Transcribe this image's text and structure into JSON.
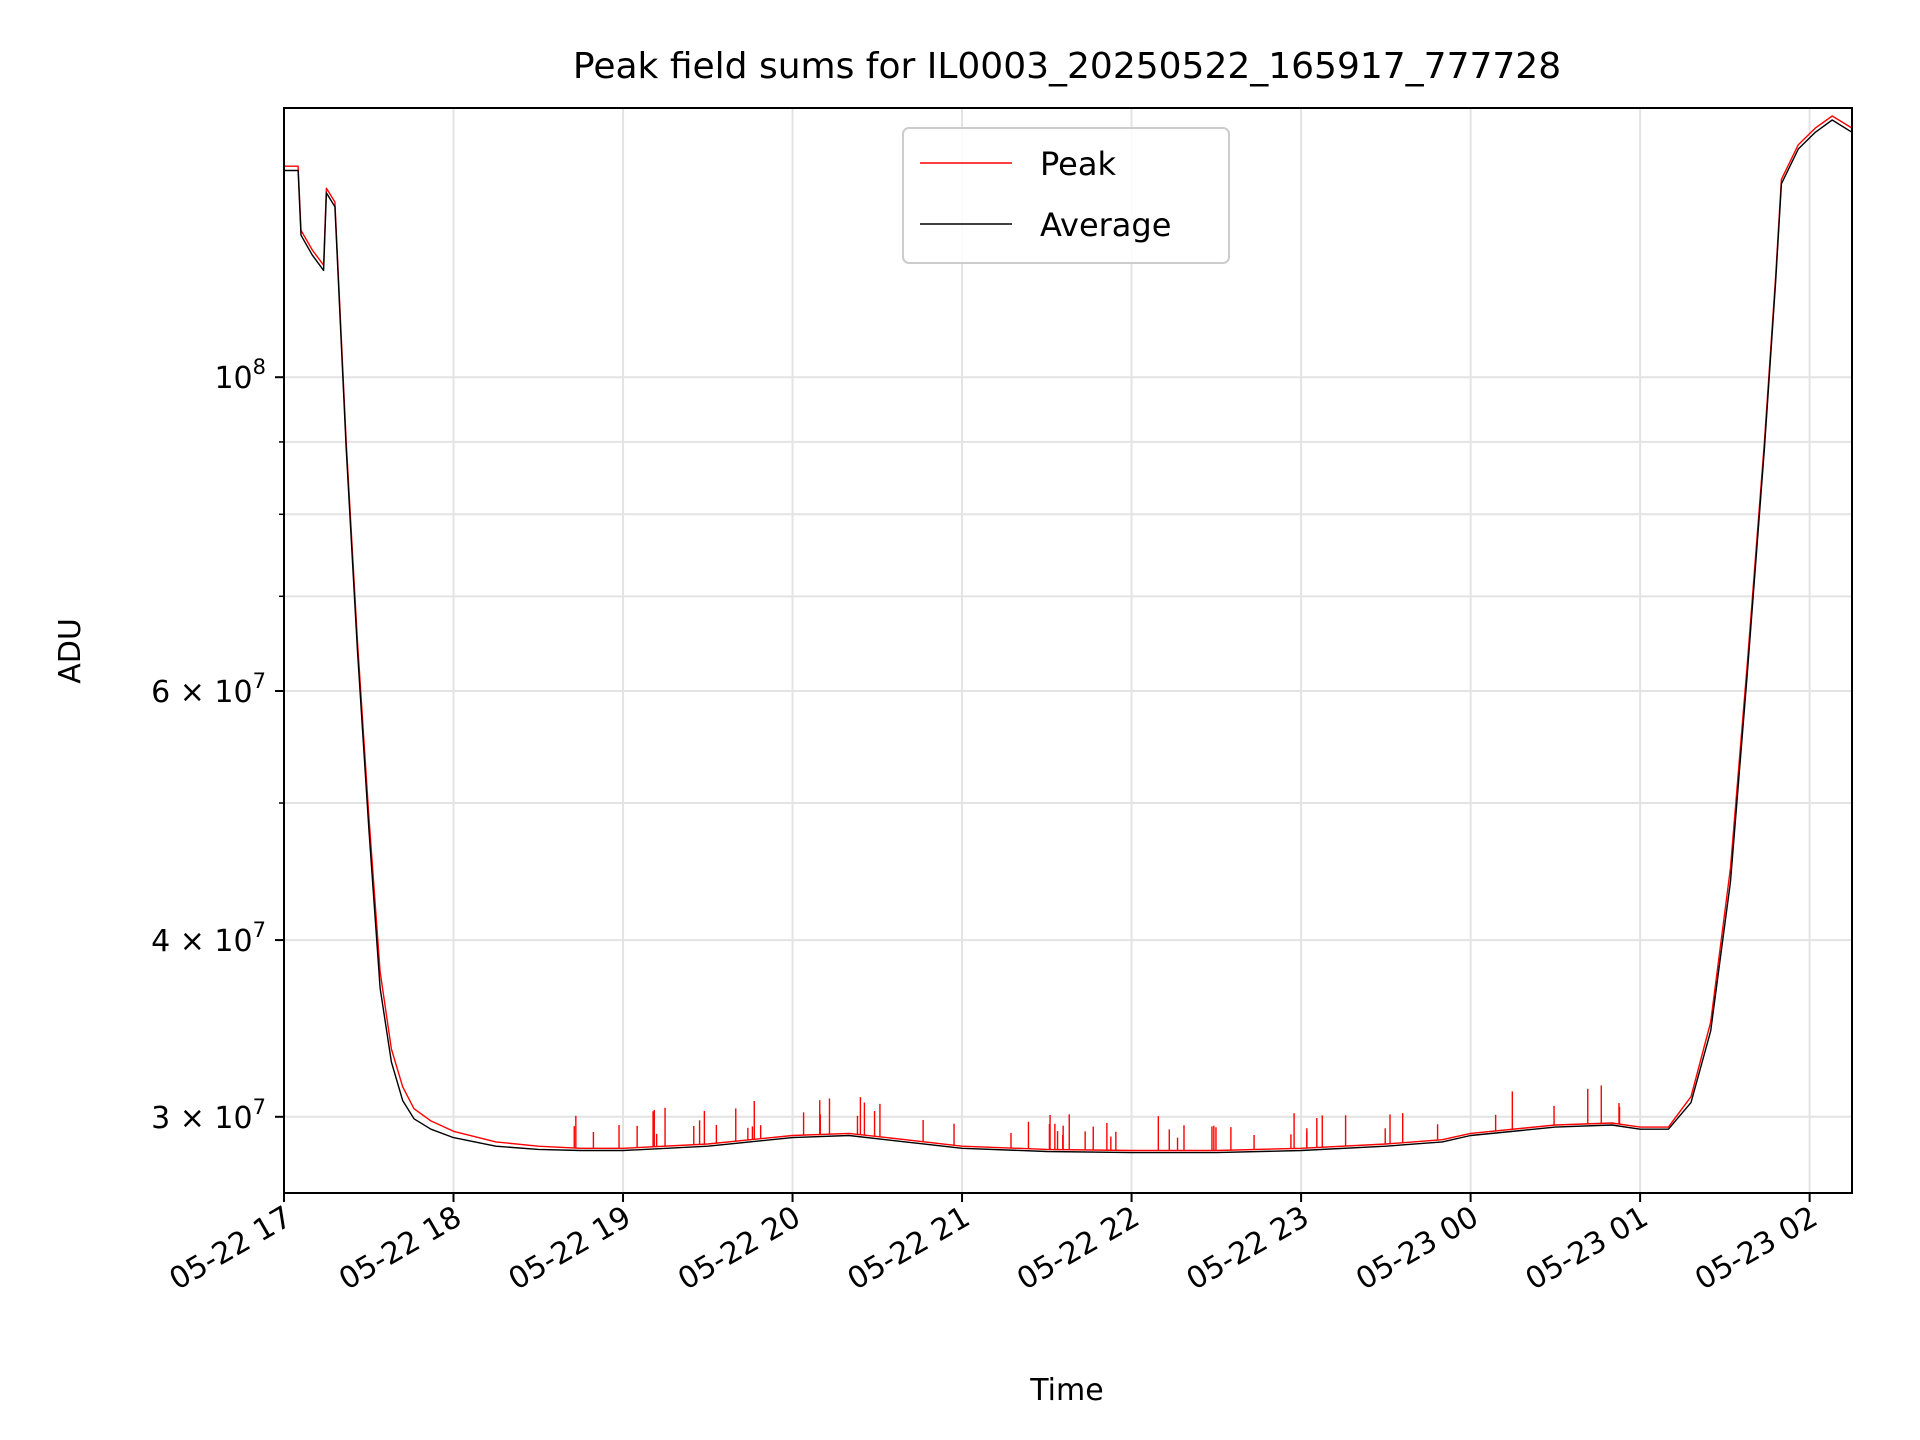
{
  "chart_data": {
    "type": "line",
    "title": "Peak field sums for IL0003_20250522_165917_777728",
    "xlabel": "Time",
    "ylabel": "ADU",
    "yscale": "log",
    "ylim": [
      26500000,
      155000000
    ],
    "xlim": [
      "2025-05-22 17:00",
      "2025-05-23 02:15"
    ],
    "grid": true,
    "legend_position": "upper center",
    "x_tick_labels": [
      "05-22 17",
      "05-22 18",
      "05-22 19",
      "05-22 20",
      "05-22 21",
      "05-22 22",
      "05-22 23",
      "05-23 00",
      "05-23 01",
      "05-23 02"
    ],
    "y_tick_labels": [
      {
        "value": 100000000,
        "base": "10",
        "exp": "8"
      },
      {
        "value": 60000000,
        "base": "6 × 10",
        "exp": "7"
      },
      {
        "value": 40000000,
        "base": "4 × 10",
        "exp": "7"
      },
      {
        "value": 30000000,
        "base": "3 × 10",
        "exp": "7"
      }
    ],
    "minor_y_ticks": [
      70000000,
      80000000,
      90000000,
      50000000
    ],
    "series": [
      {
        "name": "Peak",
        "color": "#ff0000",
        "x": [
          "2025-05-22 17:00",
          "2025-05-22 17:05",
          "2025-05-22 17:06",
          "2025-05-22 17:10",
          "2025-05-22 17:14",
          "2025-05-22 17:15",
          "2025-05-22 17:18",
          "2025-05-22 17:22",
          "2025-05-22 17:26",
          "2025-05-22 17:30",
          "2025-05-22 17:34",
          "2025-05-22 17:38",
          "2025-05-22 17:42",
          "2025-05-22 17:46",
          "2025-05-22 17:52",
          "2025-05-22 18:00",
          "2025-05-22 18:15",
          "2025-05-22 18:30",
          "2025-05-22 18:45",
          "2025-05-22 19:00",
          "2025-05-22 19:30",
          "2025-05-22 20:00",
          "2025-05-22 20:20",
          "2025-05-22 20:40",
          "2025-05-22 21:00",
          "2025-05-22 21:30",
          "2025-05-22 22:00",
          "2025-05-22 22:30",
          "2025-05-22 23:00",
          "2025-05-22 23:30",
          "2025-05-22 23:50",
          "2025-05-23 00:00",
          "2025-05-23 00:30",
          "2025-05-23 00:50",
          "2025-05-23 01:00",
          "2025-05-23 01:10",
          "2025-05-23 01:18",
          "2025-05-23 01:25",
          "2025-05-23 01:32",
          "2025-05-23 01:38",
          "2025-05-23 01:44",
          "2025-05-23 01:48",
          "2025-05-23 01:50",
          "2025-05-23 01:56",
          "2025-05-23 02:02",
          "2025-05-23 02:08",
          "2025-05-23 02:15"
        ],
        "values": [
          141000000,
          141000000,
          127000000,
          123000000,
          120000000,
          136000000,
          133000000,
          90000000,
          65000000,
          49000000,
          38000000,
          33500000,
          31500000,
          30400000,
          29800000,
          29300000,
          28800000,
          28600000,
          28500000,
          28500000,
          28700000,
          29100000,
          29200000,
          28900000,
          28600000,
          28450000,
          28400000,
          28400000,
          28500000,
          28700000,
          28900000,
          29200000,
          29600000,
          29700000,
          29500000,
          29500000,
          31000000,
          35000000,
          45000000,
          63000000,
          90000000,
          118000000,
          138000000,
          146000000,
          150000000,
          153000000,
          150000000
        ]
      },
      {
        "name": "Average",
        "color": "#000000",
        "x": [
          "2025-05-22 17:00",
          "2025-05-22 17:05",
          "2025-05-22 17:06",
          "2025-05-22 17:10",
          "2025-05-22 17:14",
          "2025-05-22 17:15",
          "2025-05-22 17:18",
          "2025-05-22 17:22",
          "2025-05-22 17:26",
          "2025-05-22 17:30",
          "2025-05-22 17:34",
          "2025-05-22 17:38",
          "2025-05-22 17:42",
          "2025-05-22 17:46",
          "2025-05-22 17:52",
          "2025-05-22 18:00",
          "2025-05-22 18:15",
          "2025-05-22 18:30",
          "2025-05-22 18:45",
          "2025-05-22 19:00",
          "2025-05-22 19:30",
          "2025-05-22 20:00",
          "2025-05-22 20:20",
          "2025-05-22 20:40",
          "2025-05-22 21:00",
          "2025-05-22 21:30",
          "2025-05-22 22:00",
          "2025-05-22 22:30",
          "2025-05-22 23:00",
          "2025-05-22 23:30",
          "2025-05-22 23:50",
          "2025-05-23 00:00",
          "2025-05-23 00:30",
          "2025-05-23 00:50",
          "2025-05-23 01:00",
          "2025-05-23 01:10",
          "2025-05-23 01:18",
          "2025-05-23 01:25",
          "2025-05-23 01:32",
          "2025-05-23 01:38",
          "2025-05-23 01:44",
          "2025-05-23 01:48",
          "2025-05-23 01:50",
          "2025-05-23 01:56",
          "2025-05-23 02:02",
          "2025-05-23 02:08",
          "2025-05-23 02:15"
        ],
        "values": [
          140000000,
          140000000,
          126000000,
          122000000,
          119000000,
          135000000,
          132000000,
          89000000,
          64000000,
          48000000,
          37000000,
          32800000,
          30800000,
          29900000,
          29400000,
          29000000,
          28600000,
          28450000,
          28400000,
          28400000,
          28600000,
          29000000,
          29100000,
          28800000,
          28500000,
          28350000,
          28300000,
          28300000,
          28400000,
          28600000,
          28800000,
          29100000,
          29500000,
          29600000,
          29400000,
          29400000,
          30700000,
          34500000,
          44000000,
          62000000,
          89000000,
          117000000,
          137000000,
          145000000,
          149000000,
          152000000,
          149000000
        ]
      }
    ]
  }
}
